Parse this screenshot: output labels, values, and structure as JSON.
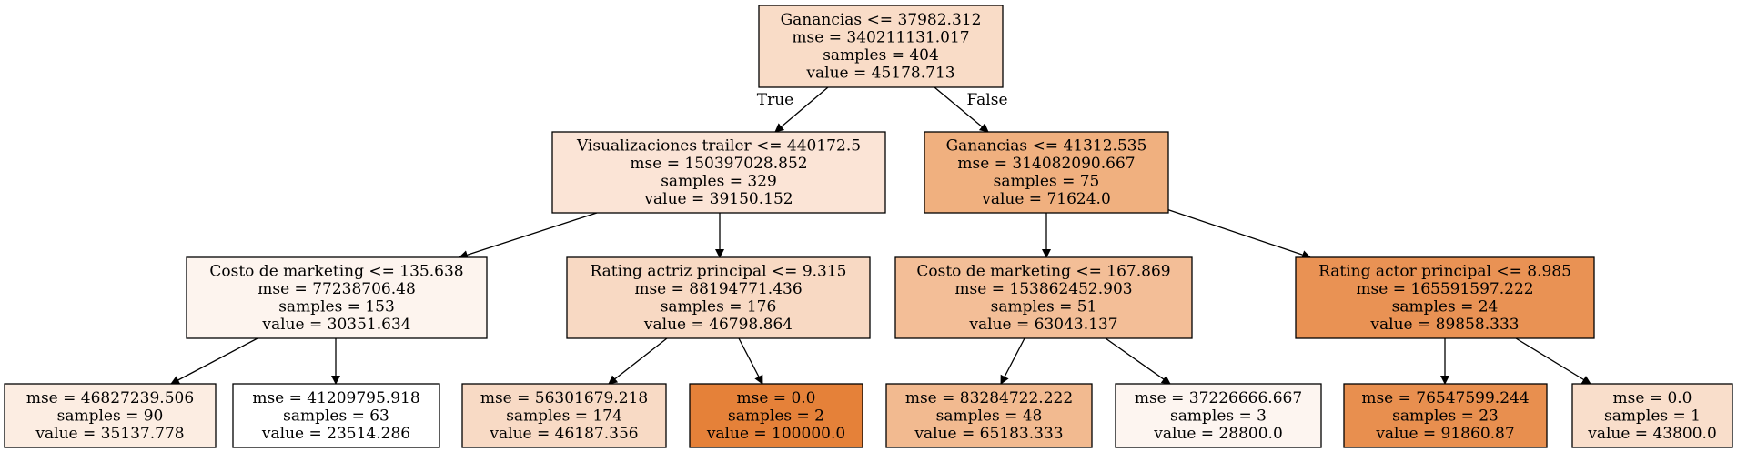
{
  "edge_labels": {
    "true": "True",
    "false": "False"
  },
  "nodes": [
    {
      "id": "n0",
      "lines": [
        "Ganancias <= 37982.312",
        "mse = 340211131.017",
        "samples = 404",
        "value = 45178.713"
      ],
      "fill": "#f9dcc7"
    },
    {
      "id": "n1",
      "lines": [
        "Visualizaciones trailer <= 440172.5",
        "mse = 150397028.852",
        "samples = 329",
        "value = 39150.152"
      ],
      "fill": "#fbe4d6"
    },
    {
      "id": "n2",
      "lines": [
        "Ganancias <= 41312.535",
        "mse = 314082090.667",
        "samples = 75",
        "value = 71624.0"
      ],
      "fill": "#f0b07f"
    },
    {
      "id": "n3",
      "lines": [
        "Costo de marketing <= 135.638",
        "mse = 77238706.48",
        "samples = 153",
        "value = 30351.634"
      ],
      "fill": "#fdf4ee"
    },
    {
      "id": "n4",
      "lines": [
        "Rating actriz principal <= 9.315",
        "mse = 88194771.436",
        "samples = 176",
        "value = 46798.864"
      ],
      "fill": "#f8d9c3"
    },
    {
      "id": "n5",
      "lines": [
        "Costo de marketing <= 167.869",
        "mse = 153862452.903",
        "samples = 51",
        "value = 63043.137"
      ],
      "fill": "#f3be97"
    },
    {
      "id": "n6",
      "lines": [
        "Rating actor principal <= 8.985",
        "mse = 165591597.222",
        "samples = 24",
        "value = 89858.333"
      ],
      "fill": "#e99254"
    },
    {
      "id": "n7",
      "lines": [
        "mse = 46827239.506",
        "samples = 90",
        "value = 35137.778"
      ],
      "fill": "#fcede2"
    },
    {
      "id": "n8",
      "lines": [
        "mse = 41209795.918",
        "samples = 63",
        "value = 23514.286"
      ],
      "fill": "#ffffff"
    },
    {
      "id": "n9",
      "lines": [
        "mse = 56301679.218",
        "samples = 174",
        "value = 46187.356"
      ],
      "fill": "#f8dac5"
    },
    {
      "id": "n10",
      "lines": [
        "mse = 0.0",
        "samples = 2",
        "value = 100000.0"
      ],
      "fill": "#e58139"
    },
    {
      "id": "n11",
      "lines": [
        "mse = 83284722.222",
        "samples = 48",
        "value = 65183.333"
      ],
      "fill": "#f2ba90"
    },
    {
      "id": "n12",
      "lines": [
        "mse = 37226666.667",
        "samples = 3",
        "value = 28800.0"
      ],
      "fill": "#fdf5f0"
    },
    {
      "id": "n13",
      "lines": [
        "mse = 76547599.244",
        "samples = 23",
        "value = 91860.87"
      ],
      "fill": "#e88f4f"
    },
    {
      "id": "n14",
      "lines": [
        "mse = 0.0",
        "samples = 1",
        "value = 43800.0"
      ],
      "fill": "#f9decb"
    }
  ]
}
